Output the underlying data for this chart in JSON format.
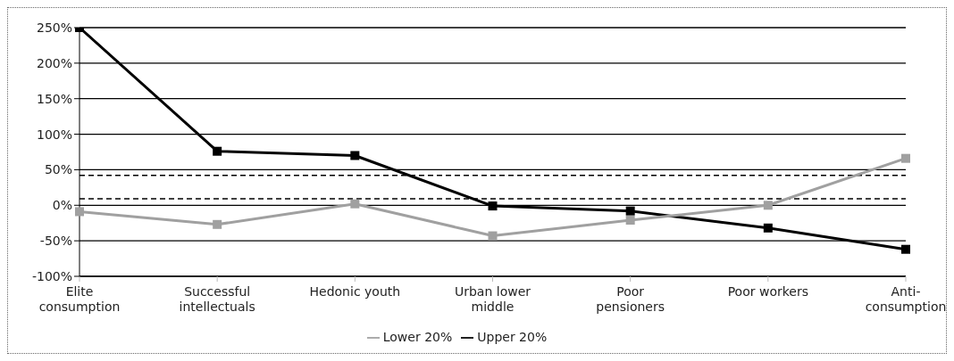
{
  "chart_data": {
    "type": "line",
    "categories": [
      "Elite consumption",
      "Successful intellectuals",
      "Hedonic youth",
      "Urban lower middle",
      "Poor pensioners",
      "Poor workers",
      "Anti-consumption"
    ],
    "series": [
      {
        "name": "Upper 20%",
        "color": "#000000",
        "values": [
          250,
          76,
          70,
          -1,
          -8,
          -32,
          -62
        ]
      },
      {
        "name": "Lower 20%",
        "color": "#a0a0a0",
        "values": [
          -9,
          -27,
          2,
          -43,
          -21,
          0,
          66
        ]
      }
    ],
    "ylim": [
      -100,
      250
    ],
    "yticks": [
      {
        "value": -100,
        "label": "-100%"
      },
      {
        "value": -50,
        "label": "-50%"
      },
      {
        "value": 0,
        "label": "0%"
      },
      {
        "value": 50,
        "label": "50%"
      },
      {
        "value": 100,
        "label": "100%"
      },
      {
        "value": 150,
        "label": "150%"
      },
      {
        "value": 200,
        "label": "200%"
      },
      {
        "value": 250,
        "label": "250%"
      }
    ],
    "ref_lines": [
      {
        "axis": "y",
        "value": 42,
        "color": "#000000",
        "line_style": "dashed"
      },
      {
        "axis": "y",
        "value": 9,
        "color": "#000000",
        "line_style": "dashed"
      }
    ],
    "grid": "y",
    "legend": "bottom",
    "marker": "square",
    "line_style": "solid"
  }
}
